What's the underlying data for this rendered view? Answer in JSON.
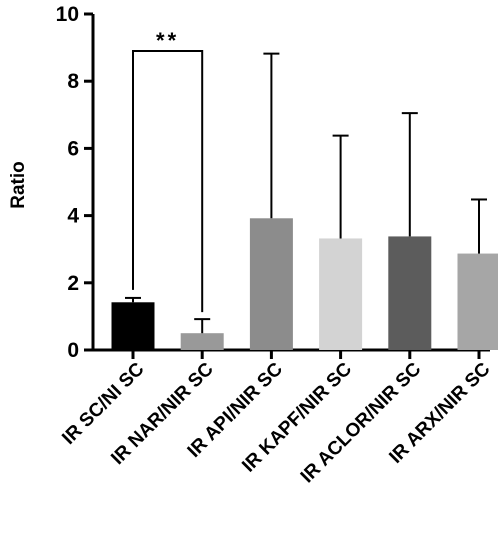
{
  "chart_data": {
    "type": "bar",
    "title": "",
    "xlabel": "",
    "ylabel": "Ratio",
    "ylim": [
      0,
      10
    ],
    "yticks": [
      "0",
      "2",
      "4",
      "6",
      "8",
      "10"
    ],
    "grid": false,
    "categories": [
      "IR SC/NI SC",
      "IR NAR/NIR SC",
      "IR API/NIR SC",
      "IR KAPF/NIR SC",
      "IR ACLOR/NIR SC",
      "IR ARX/NIR SC"
    ],
    "values": [
      1.42,
      0.5,
      3.92,
      3.32,
      3.38,
      2.87
    ],
    "error_upper": [
      1.55,
      0.92,
      8.82,
      6.38,
      7.05,
      4.48
    ],
    "colors": [
      "#000000",
      "#999999",
      "#8c8c8c",
      "#d3d3d3",
      "#5c5c5c",
      "#a6a6a6"
    ],
    "annotations": [
      {
        "text": "**",
        "from_index": 0,
        "to_index": 1,
        "y": 8.9
      }
    ]
  }
}
